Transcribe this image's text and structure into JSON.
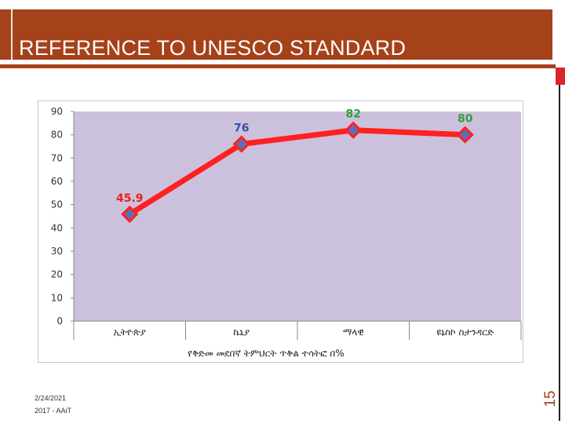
{
  "slide": {
    "title": "REFERENCE TO UNESCO STANDARD",
    "number": "15",
    "footer_date": "2/24/2021",
    "footer_org": "2017 - AAiT",
    "colors": {
      "bar": "#a5421a",
      "accent": "#d8262b"
    }
  },
  "chart_data": {
    "type": "line",
    "categories": [
      "ኢትዮጵያ",
      "ኬኒያ",
      "ማላዊ",
      "ዩኔስኮ ስታንዳርድ"
    ],
    "series": [
      {
        "values": [
          45.9,
          76,
          82,
          80
        ],
        "data_labels": [
          "45.9",
          "76",
          "82",
          "80"
        ],
        "label_colors": [
          "#e8211a",
          "#3b4fa8",
          "#2e9e3a",
          "#2e9e3a"
        ],
        "line_color": "#ff2020",
        "marker_color": "#5b6fb8"
      }
    ],
    "xlabel": "የቅድመ መደበኛ ትምህርት ጥቅል ተሳትፎ በ%",
    "ylabel": "",
    "ylim": [
      0,
      90
    ],
    "yticks": [
      "0",
      "10",
      "20",
      "30",
      "40",
      "50",
      "60",
      "70",
      "80",
      "90"
    ],
    "grid": false,
    "plot_background": "#ccc1dc"
  }
}
